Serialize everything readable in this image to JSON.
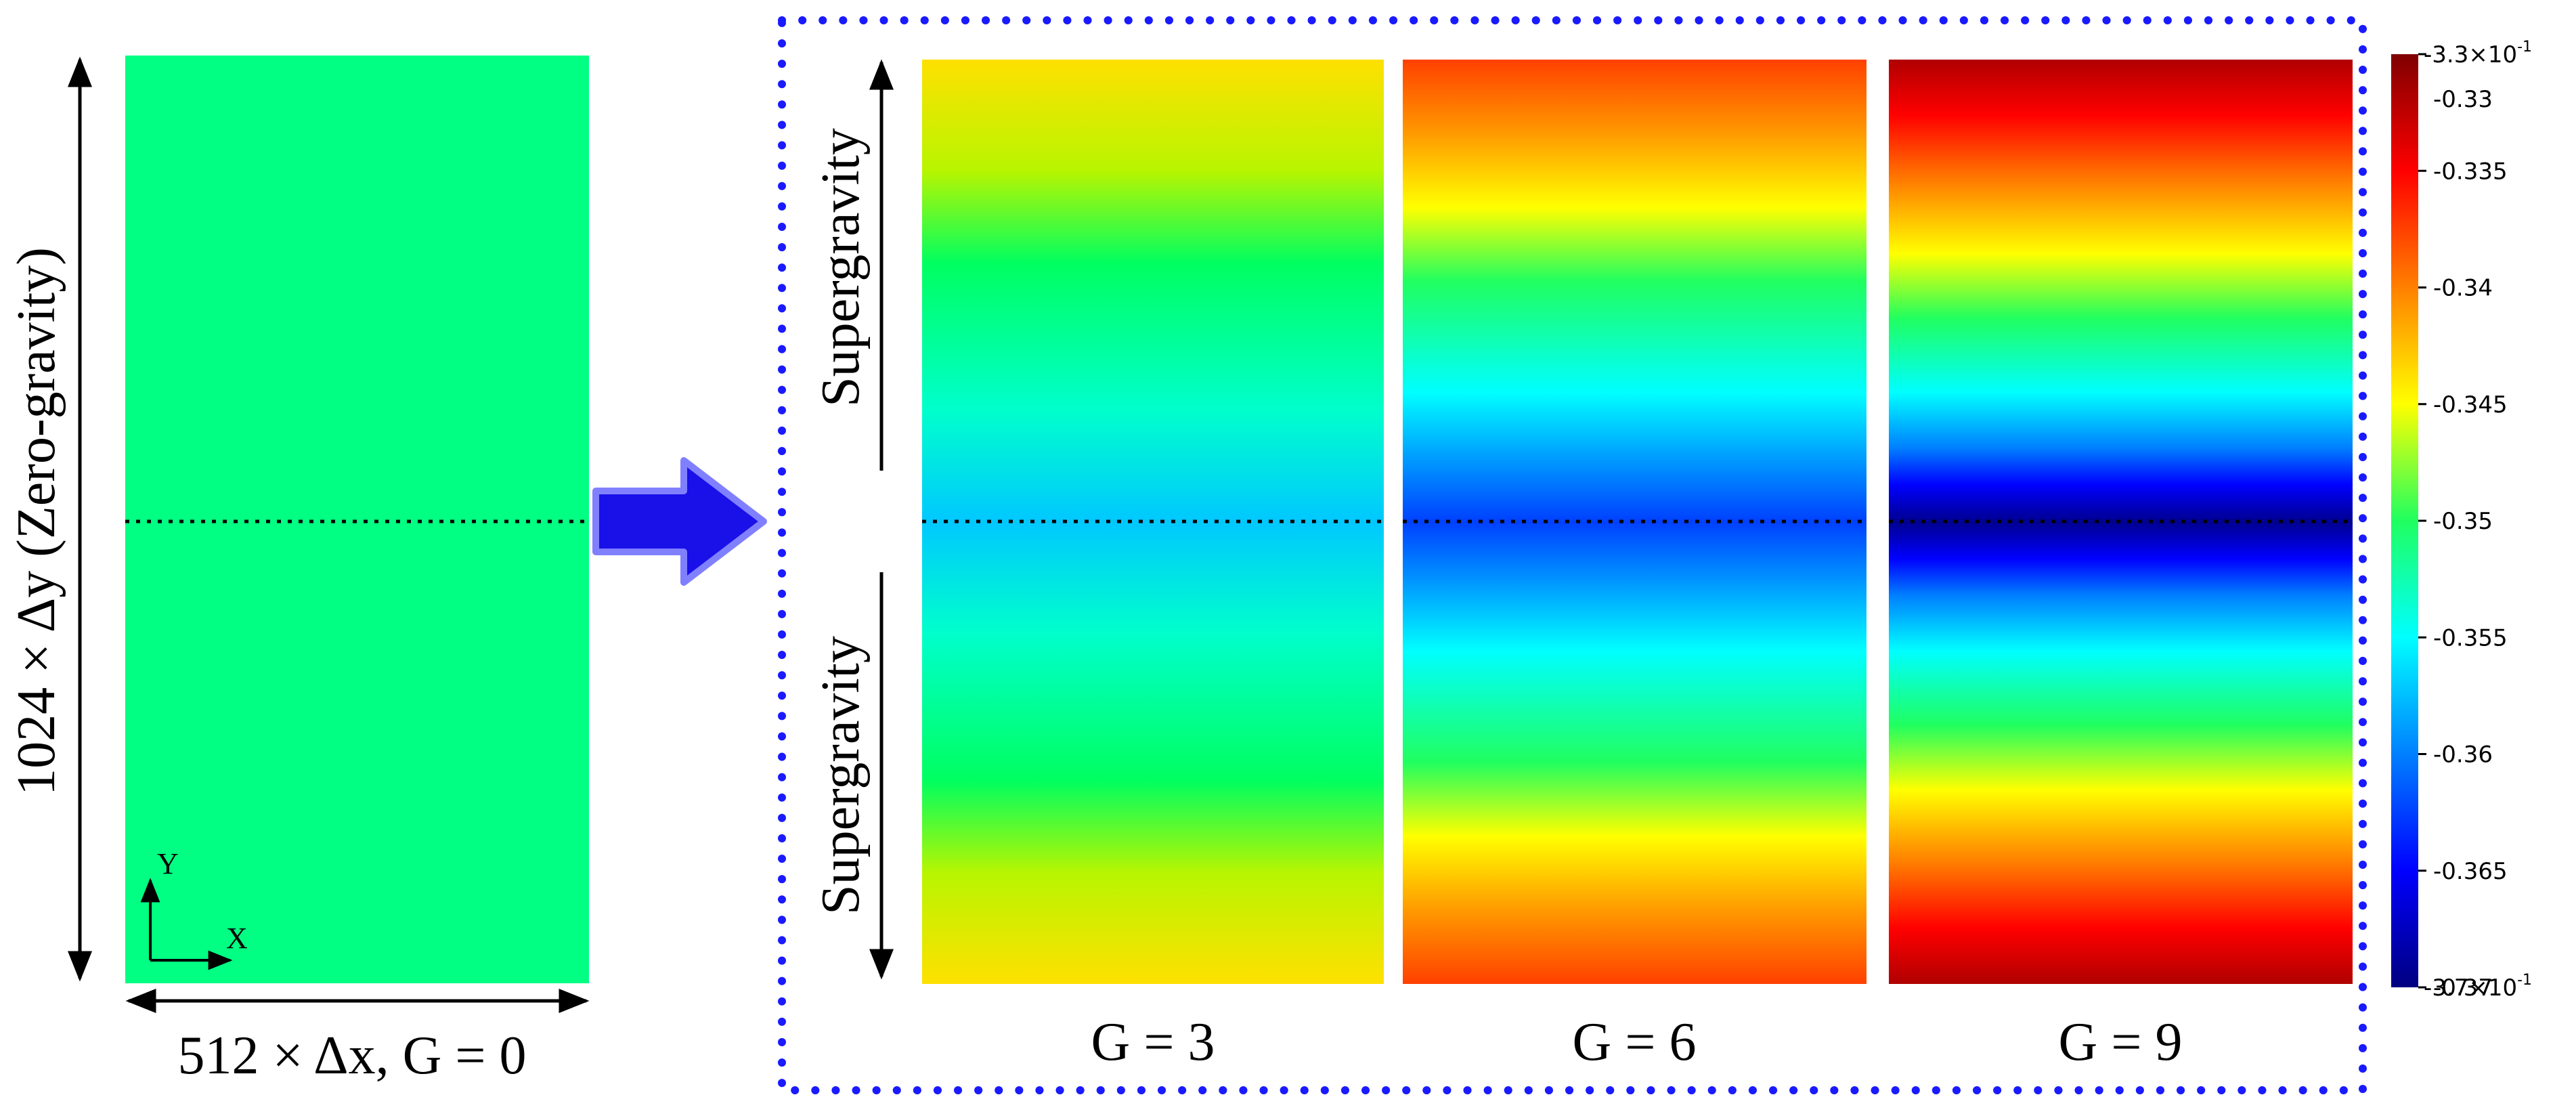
{
  "left_panel": {
    "height_label": "1024 × Δy (Zero-gravity)",
    "width_label": "512 × Δx, G = 0",
    "axis_y": "Y",
    "axis_x": "X",
    "fill_color": "#00ff82"
  },
  "right_panel": {
    "arrow_labels": [
      "Supergravity",
      "Supergravity"
    ],
    "panels": [
      {
        "label": "G = 3",
        "gravity": 3
      },
      {
        "label": "G = 6",
        "gravity": 6
      },
      {
        "label": "G = 9",
        "gravity": 9
      }
    ]
  },
  "colorbar": {
    "min": -0.37,
    "max": -0.33,
    "top_label": "-3.3×10",
    "top_exp": "-1",
    "bottom_label": "-3.7×10",
    "bottom_exp": "-1",
    "ticks": [
      {
        "value": -0.33,
        "label": "-0.33"
      },
      {
        "value": -0.335,
        "label": "-0.335"
      },
      {
        "value": -0.34,
        "label": "-0.34"
      },
      {
        "value": -0.345,
        "label": "-0.345"
      },
      {
        "value": -0.35,
        "label": "-0.35"
      },
      {
        "value": -0.355,
        "label": "-0.355"
      },
      {
        "value": -0.36,
        "label": "-0.36"
      },
      {
        "value": -0.365,
        "label": "-0.365"
      },
      {
        "value": -0.37,
        "label": "-0.37"
      }
    ]
  },
  "colors": {
    "frame": "#1a1aff",
    "arrow_fill": "#1a10e8",
    "arrow_edge": "#8080ff"
  }
}
